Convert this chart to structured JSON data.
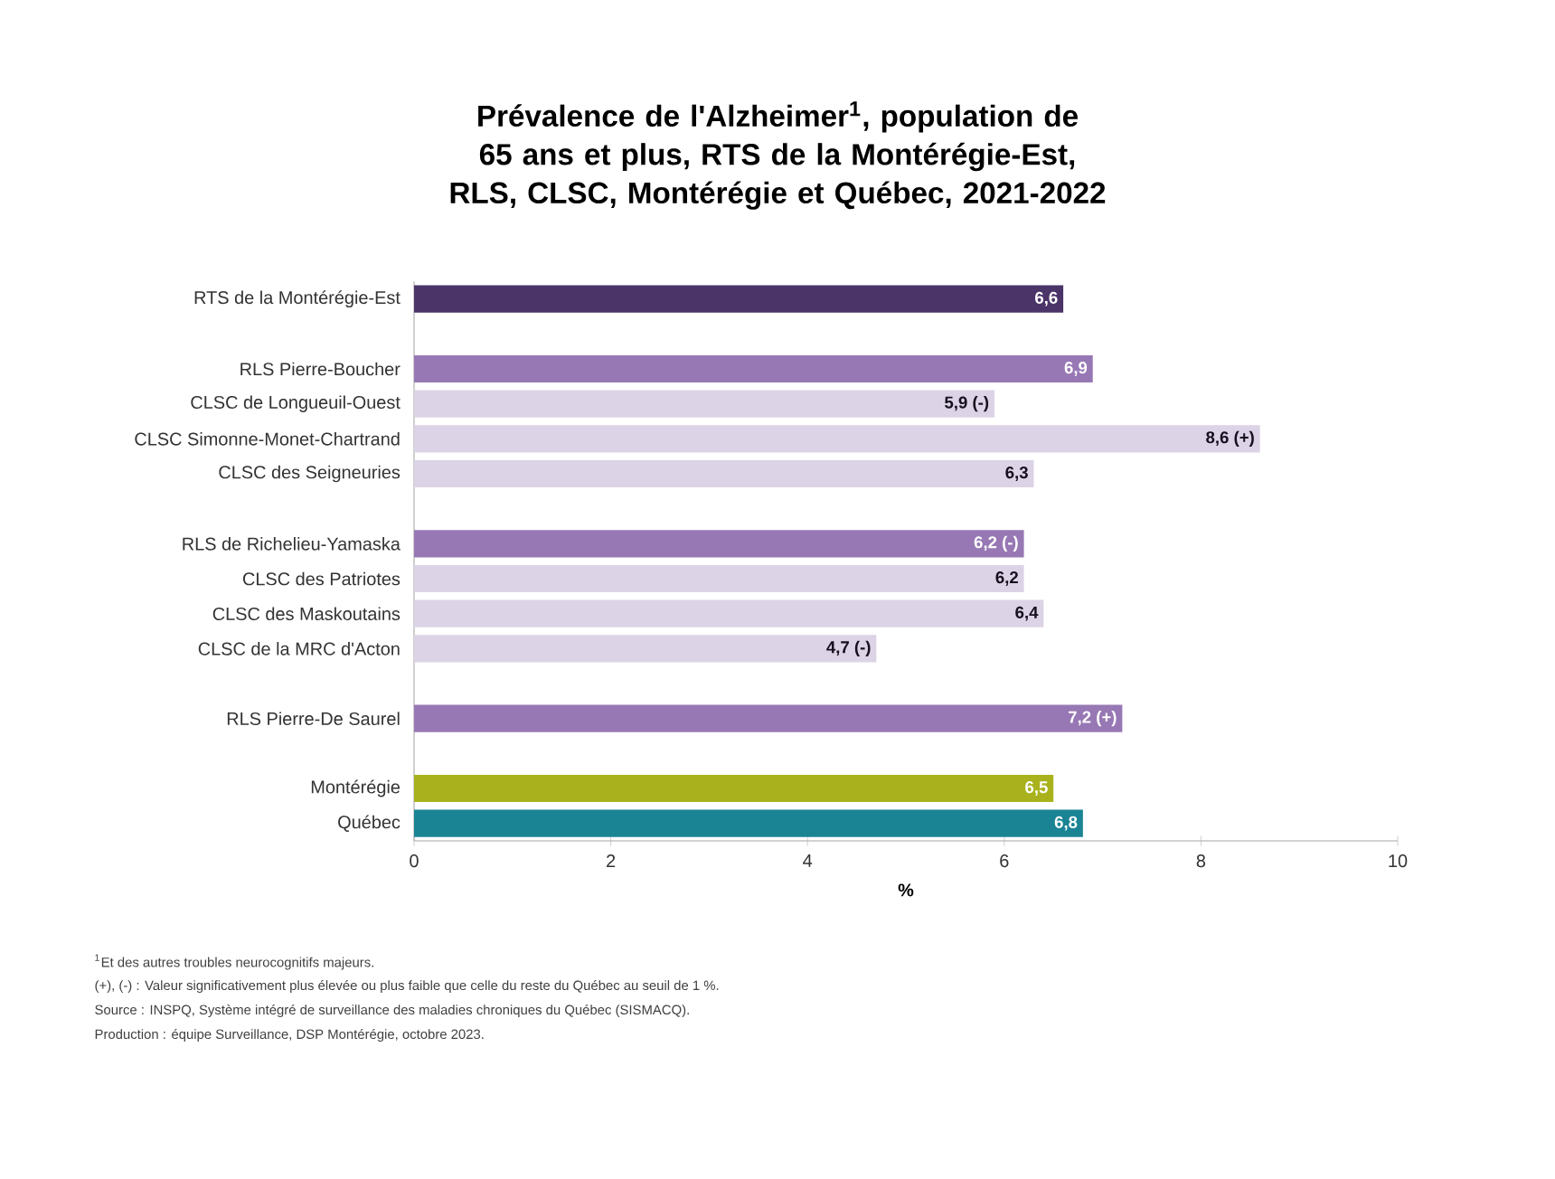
{
  "chart_data": {
    "type": "bar",
    "orientation": "horizontal",
    "title": "Prévalence de l'Alzheimer$^{1}$, population de 65 ans et plus, RTS de la Montérégie-Est, RLS, CLSC, Montérégie et Québec, 2021-2022",
    "xlabel": "%",
    "categories": [
      "RTS de la Montérégie-Est",
      null,
      "RLS Pierre-Boucher",
      "CLSC de Longueuil-Ouest",
      "CLSC Simonne-Monet-Chartrand",
      "CLSC des Seigneuries",
      null,
      "RLS de Richelieu-Yamaska",
      "CLSC des Patriotes",
      "CLSC des Maskoutains",
      "CLSC de la MRC d'Acton",
      null,
      "RLS Pierre-De Saurel",
      null,
      "Montérégie",
      "Québec"
    ],
    "values": [
      6.6,
      null,
      6.9,
      5.9,
      8.6,
      6.3,
      null,
      6.2,
      6.2,
      6.4,
      4.7,
      null,
      7.2,
      null,
      6.5,
      6.8
    ],
    "value_labels": [
      "6,6",
      null,
      "6,9",
      "5,9 (-)",
      "8,6 (+)",
      "6,3",
      null,
      "6,2 (-)",
      "6,2",
      "6,4",
      "4,7 (-)",
      null,
      "7,2 (+)",
      null,
      "6,5",
      "6,8"
    ],
    "colors": [
      "#4b3468",
      null,
      "#9778b4",
      "#dcd3e6",
      "#dcd3e6",
      "#dcd3e6",
      null,
      "#9778b4",
      "#dcd3e6",
      "#dcd3e6",
      "#dcd3e6",
      null,
      "#9778b4",
      null,
      "#a9b21d",
      "#1b8494"
    ],
    "xlim": [
      0,
      10
    ],
    "xticks": [
      0,
      2,
      4,
      6,
      8,
      10
    ],
    "grid": false,
    "annotations": [
      "$^{1}$Et des autres troubles neurocognitifs majeurs.",
      "(+), (-) : Valeur significativement plus élevée ou plus faible que celle du reste du Québec au seuil de 1 %.",
      "Source : INSPQ, Système intégré de surveillance des maladies chroniques du Québec (SISMACQ).",
      "Production : équipe Surveillance, DSP Montérégie, octobre 2023."
    ]
  }
}
